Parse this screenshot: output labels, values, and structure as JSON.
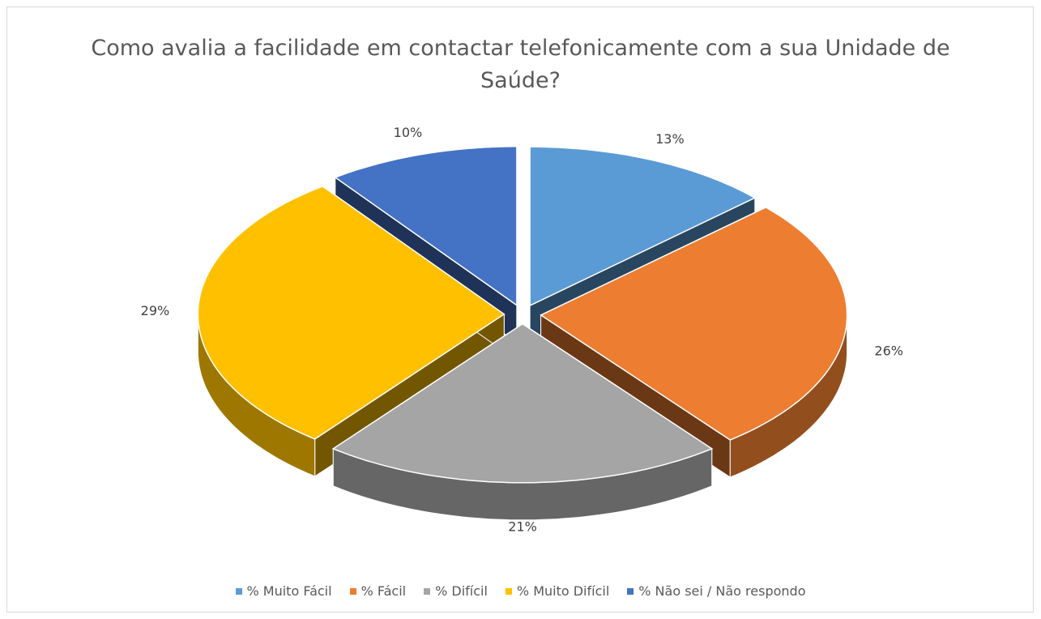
{
  "chart_data": {
    "type": "pie3d",
    "title": "Como avalia a facilidade em contactar telefonicamente com a sua Unidade de Saúde?",
    "categories": [
      "% Muito Fácil",
      "% Fácil",
      "% Difícil",
      "% Muito Difícil",
      "% Não sei / Não respondo"
    ],
    "values": [
      13,
      26,
      21,
      29,
      10
    ],
    "value_labels": [
      "13%",
      "26%",
      "21%",
      "29%",
      "10%"
    ],
    "colors": [
      "#5b9bd5",
      "#ed7d31",
      "#a5a5a5",
      "#ffc000",
      "#4472c4"
    ],
    "legend": "bottom"
  }
}
